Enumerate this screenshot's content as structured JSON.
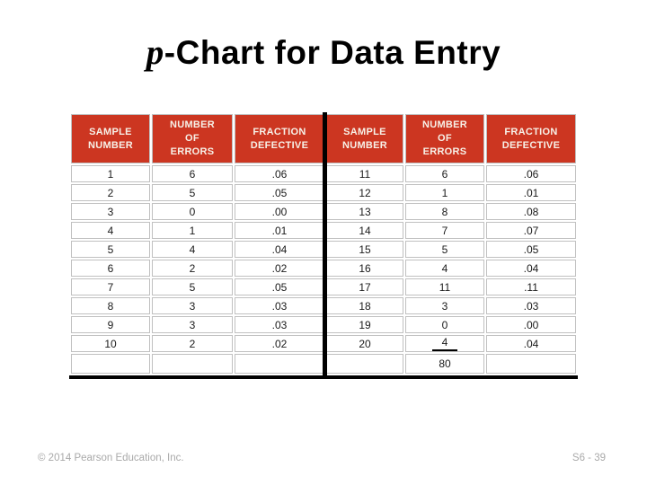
{
  "slide": {
    "title": {
      "prefix_italic": "p",
      "text": "-Chart for Data Entry"
    }
  },
  "table": {
    "columns": [
      {
        "label": "SAMPLE NUMBER",
        "lines": [
          "SAMPLE",
          "NUMBER"
        ]
      },
      {
        "label": "NUMBER OF ERRORS",
        "lines": [
          "NUMBER",
          "OF",
          "ERRORS"
        ]
      },
      {
        "label": "FRACTION DEFECTIVE",
        "lines": [
          "FRACTION",
          "DEFECTIVE"
        ]
      },
      {
        "label": "SAMPLE NUMBER",
        "lines": [
          "SAMPLE",
          "NUMBER"
        ]
      },
      {
        "label": "NUMBER OF ERRORS",
        "lines": [
          "NUMBER",
          "OF",
          "ERRORS"
        ]
      },
      {
        "label": "FRACTION DEFECTIVE",
        "lines": [
          "FRACTION",
          "DEFECTIVE"
        ]
      }
    ],
    "rows": [
      [
        "1",
        "6",
        ".06",
        "11",
        "6",
        ".06"
      ],
      [
        "2",
        "5",
        ".05",
        "12",
        "1",
        ".01"
      ],
      [
        "3",
        "0",
        ".00",
        "13",
        "8",
        ".08"
      ],
      [
        "4",
        "1",
        ".01",
        "14",
        "7",
        ".07"
      ],
      [
        "5",
        "4",
        ".04",
        "15",
        "5",
        ".05"
      ],
      [
        "6",
        "2",
        ".02",
        "16",
        "4",
        ".04"
      ],
      [
        "7",
        "5",
        ".05",
        "17",
        "11",
        ".11"
      ],
      [
        "8",
        "3",
        ".03",
        "18",
        "3",
        ".03"
      ],
      [
        "9",
        "3",
        ".03",
        "19",
        "0",
        ".00"
      ],
      [
        "10",
        "2",
        ".02",
        "20",
        "4",
        ".04"
      ]
    ],
    "total_row": [
      "",
      "",
      "",
      "",
      "80",
      ""
    ],
    "errors_total": "80",
    "sum_underline": {
      "row_index": 9,
      "col_index": 4
    },
    "colors": {
      "header_bg": "#CC3621",
      "header_text": "#F7F1E8",
      "grid": "#C0C0C0",
      "cell_text": "#1A1A1A",
      "divider": "#000000"
    }
  },
  "footer": {
    "copyright": "© 2014 Pearson Education, Inc.",
    "slide_number": "S6 - 39"
  },
  "chart_data": {
    "type": "table",
    "title": "p-Chart for Data Entry",
    "columns": [
      "SAMPLE NUMBER",
      "NUMBER OF ERRORS",
      "FRACTION DEFECTIVE",
      "SAMPLE NUMBER",
      "NUMBER OF ERRORS",
      "FRACTION DEFECTIVE"
    ],
    "sample_number": [
      1,
      2,
      3,
      4,
      5,
      6,
      7,
      8,
      9,
      10,
      11,
      12,
      13,
      14,
      15,
      16,
      17,
      18,
      19,
      20
    ],
    "number_of_errors": [
      6,
      5,
      0,
      1,
      4,
      2,
      5,
      3,
      3,
      2,
      6,
      1,
      8,
      7,
      5,
      4,
      11,
      3,
      0,
      4
    ],
    "fraction_defective": [
      0.06,
      0.05,
      0.0,
      0.01,
      0.04,
      0.02,
      0.05,
      0.03,
      0.03,
      0.02,
      0.06,
      0.01,
      0.08,
      0.07,
      0.05,
      0.04,
      0.11,
      0.03,
      0.0,
      0.04
    ],
    "total_errors": 80
  }
}
